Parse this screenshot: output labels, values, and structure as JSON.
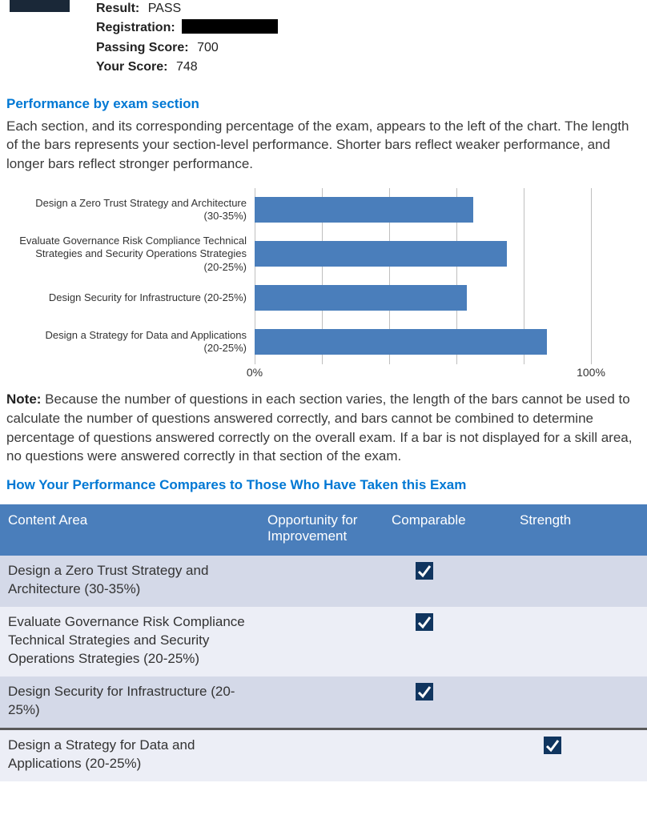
{
  "summary": {
    "result_label": "Result:",
    "result_value": "PASS",
    "registration_label": "Registration:",
    "passing_label": "Passing Score:",
    "passing_value": "700",
    "yourscore_label": "Your Score:",
    "yourscore_value": "748"
  },
  "perf": {
    "title": "Performance by exam section",
    "intro": "Each section, and its corresponding percentage of the exam, appears to the left of the chart. The length of the bars represents your section-level performance. Shorter bars reflect weaker performance, and longer bars reflect stronger performance.",
    "note_label": "Note:",
    "note_text": " Because the number of questions in each section varies, the length of the bars cannot be used to calculate the number of questions answered correctly, and bars cannot be combined to determine percentage of questions answered correctly on the overall exam. If a bar is not displayed for a skill area, no questions were answered correctly in that section of the exam."
  },
  "chart": {
    "type": "bar-horizontal",
    "bar_color": "#4a7ebb",
    "grid_color": "#bfbfbf",
    "xlim": [
      0,
      100
    ],
    "gridlines": [
      0,
      20,
      40,
      60,
      80,
      100
    ],
    "axis_ticks": [
      {
        "pos": 0,
        "label": "0%"
      },
      {
        "pos": 100,
        "label": "100%"
      }
    ],
    "rows": [
      {
        "label1": "Design a Zero Trust Strategy and Architecture",
        "label2": "(30-35%)",
        "value": 65
      },
      {
        "label1": "Evaluate Governance Risk Compliance Technical",
        "label2": "Strategies and Security Operations Strategies",
        "label3": "(20-25%)",
        "value": 75
      },
      {
        "label1": "Design Security for Infrastructure (20-25%)",
        "value": 63
      },
      {
        "label1": "Design a Strategy for Data and Applications",
        "label2": "(20-25%)",
        "value": 87
      }
    ]
  },
  "compare": {
    "title": "How Your Performance Compares to Those Who Have Taken this Exam",
    "columns": {
      "c0": "Content Area",
      "c1": "Opportunity for Improvement",
      "c2": "Comparable",
      "c3": "Strength"
    },
    "rows": [
      {
        "area": "Design a Zero Trust Strategy and Architecture (30-35%)",
        "mark": "comparable"
      },
      {
        "area": "Evaluate Governance Risk Compliance Technical Strategies and Security Operations Strategies (20-25%)",
        "mark": "comparable"
      },
      {
        "area": "Design Security for Infrastructure (20-25%)",
        "mark": "comparable"
      },
      {
        "area": "Design a Strategy for Data and Applications (20-25%)",
        "mark": "strength"
      }
    ]
  },
  "colors": {
    "accent_blue": "#0078d4",
    "bar_blue": "#4a7ebb",
    "check_bg": "#10355f",
    "row_odd": "#d4d9e8",
    "row_even": "#eceef6"
  }
}
